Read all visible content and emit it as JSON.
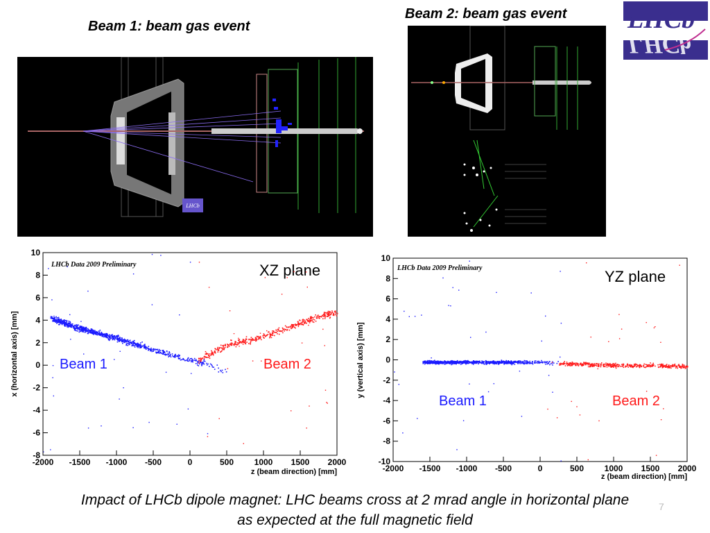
{
  "titles": {
    "beam1": "Beam 1: beam gas event",
    "beam2": "Beam 2: beam gas event"
  },
  "logo": {
    "text": "LHCb",
    "color": "#3a2e8e"
  },
  "event_display_beam1": {
    "logo_text": "LHCb"
  },
  "caption": {
    "line1": "Impact of LHCb dipole magnet: LHC beams cross at 2 mrad angle in horizontal plane",
    "line2": "as expected at the full magnetic field"
  },
  "slide_number": "7",
  "colors": {
    "beam1": "#1a1aff",
    "beam2": "#ff1a1a"
  },
  "chart_data": [
    {
      "type": "scatter",
      "annotation": "LHCb Data 2009 Preliminary",
      "plane_label": "XZ plane",
      "xlabel": "z (beam direction) [mm]",
      "ylabel": "x (horizontal axis) [mm]",
      "xlim": [
        -2000,
        2000
      ],
      "ylim": [
        -8,
        10
      ],
      "xticks": [
        -2000,
        -1500,
        -1000,
        -500,
        0,
        500,
        1000,
        1500,
        2000
      ],
      "yticks": [
        -8,
        -6,
        -4,
        -2,
        0,
        2,
        4,
        6,
        8,
        10
      ],
      "grid": false,
      "series": [
        {
          "name": "Beam 1",
          "color": "#1a1aff",
          "trend": {
            "x": [
              -1900,
              -1500,
              -1000,
              -500,
              0,
              200,
              500
            ],
            "y": [
              4.2,
              3.3,
              2.4,
              1.4,
              0.5,
              0.2,
              -0.6
            ]
          }
        },
        {
          "name": "Beam 2",
          "color": "#ff1a1a",
          "trend": {
            "x": [
              100,
              500,
              1000,
              1500,
              2000
            ],
            "y": [
              0.5,
              1.8,
              2.6,
              3.8,
              4.8
            ]
          }
        }
      ]
    },
    {
      "type": "scatter",
      "annotation": "LHCb Data 2009 Preliminary",
      "plane_label": "YZ plane",
      "xlabel": "z (beam direction) [mm]",
      "ylabel": "y (vertical axis) [mm]",
      "xlim": [
        -2000,
        2000
      ],
      "ylim": [
        -10,
        10
      ],
      "xticks": [
        -2000,
        -1500,
        -1000,
        -500,
        0,
        500,
        1000,
        1500,
        2000
      ],
      "yticks": [
        -10,
        -8,
        -6,
        -4,
        -2,
        0,
        2,
        4,
        6,
        8,
        10
      ],
      "grid": false,
      "series": [
        {
          "name": "Beam 1",
          "color": "#1a1aff",
          "trend": {
            "x": [
              -1600,
              -1000,
              -500,
              0,
              250
            ],
            "y": [
              -0.2,
              -0.2,
              -0.2,
              -0.2,
              -0.3
            ]
          }
        },
        {
          "name": "Beam 2",
          "color": "#ff1a1a",
          "trend": {
            "x": [
              250,
              1000,
              1500,
              2000
            ],
            "y": [
              -0.3,
              -0.5,
              -0.5,
              -0.6
            ]
          }
        }
      ]
    }
  ]
}
